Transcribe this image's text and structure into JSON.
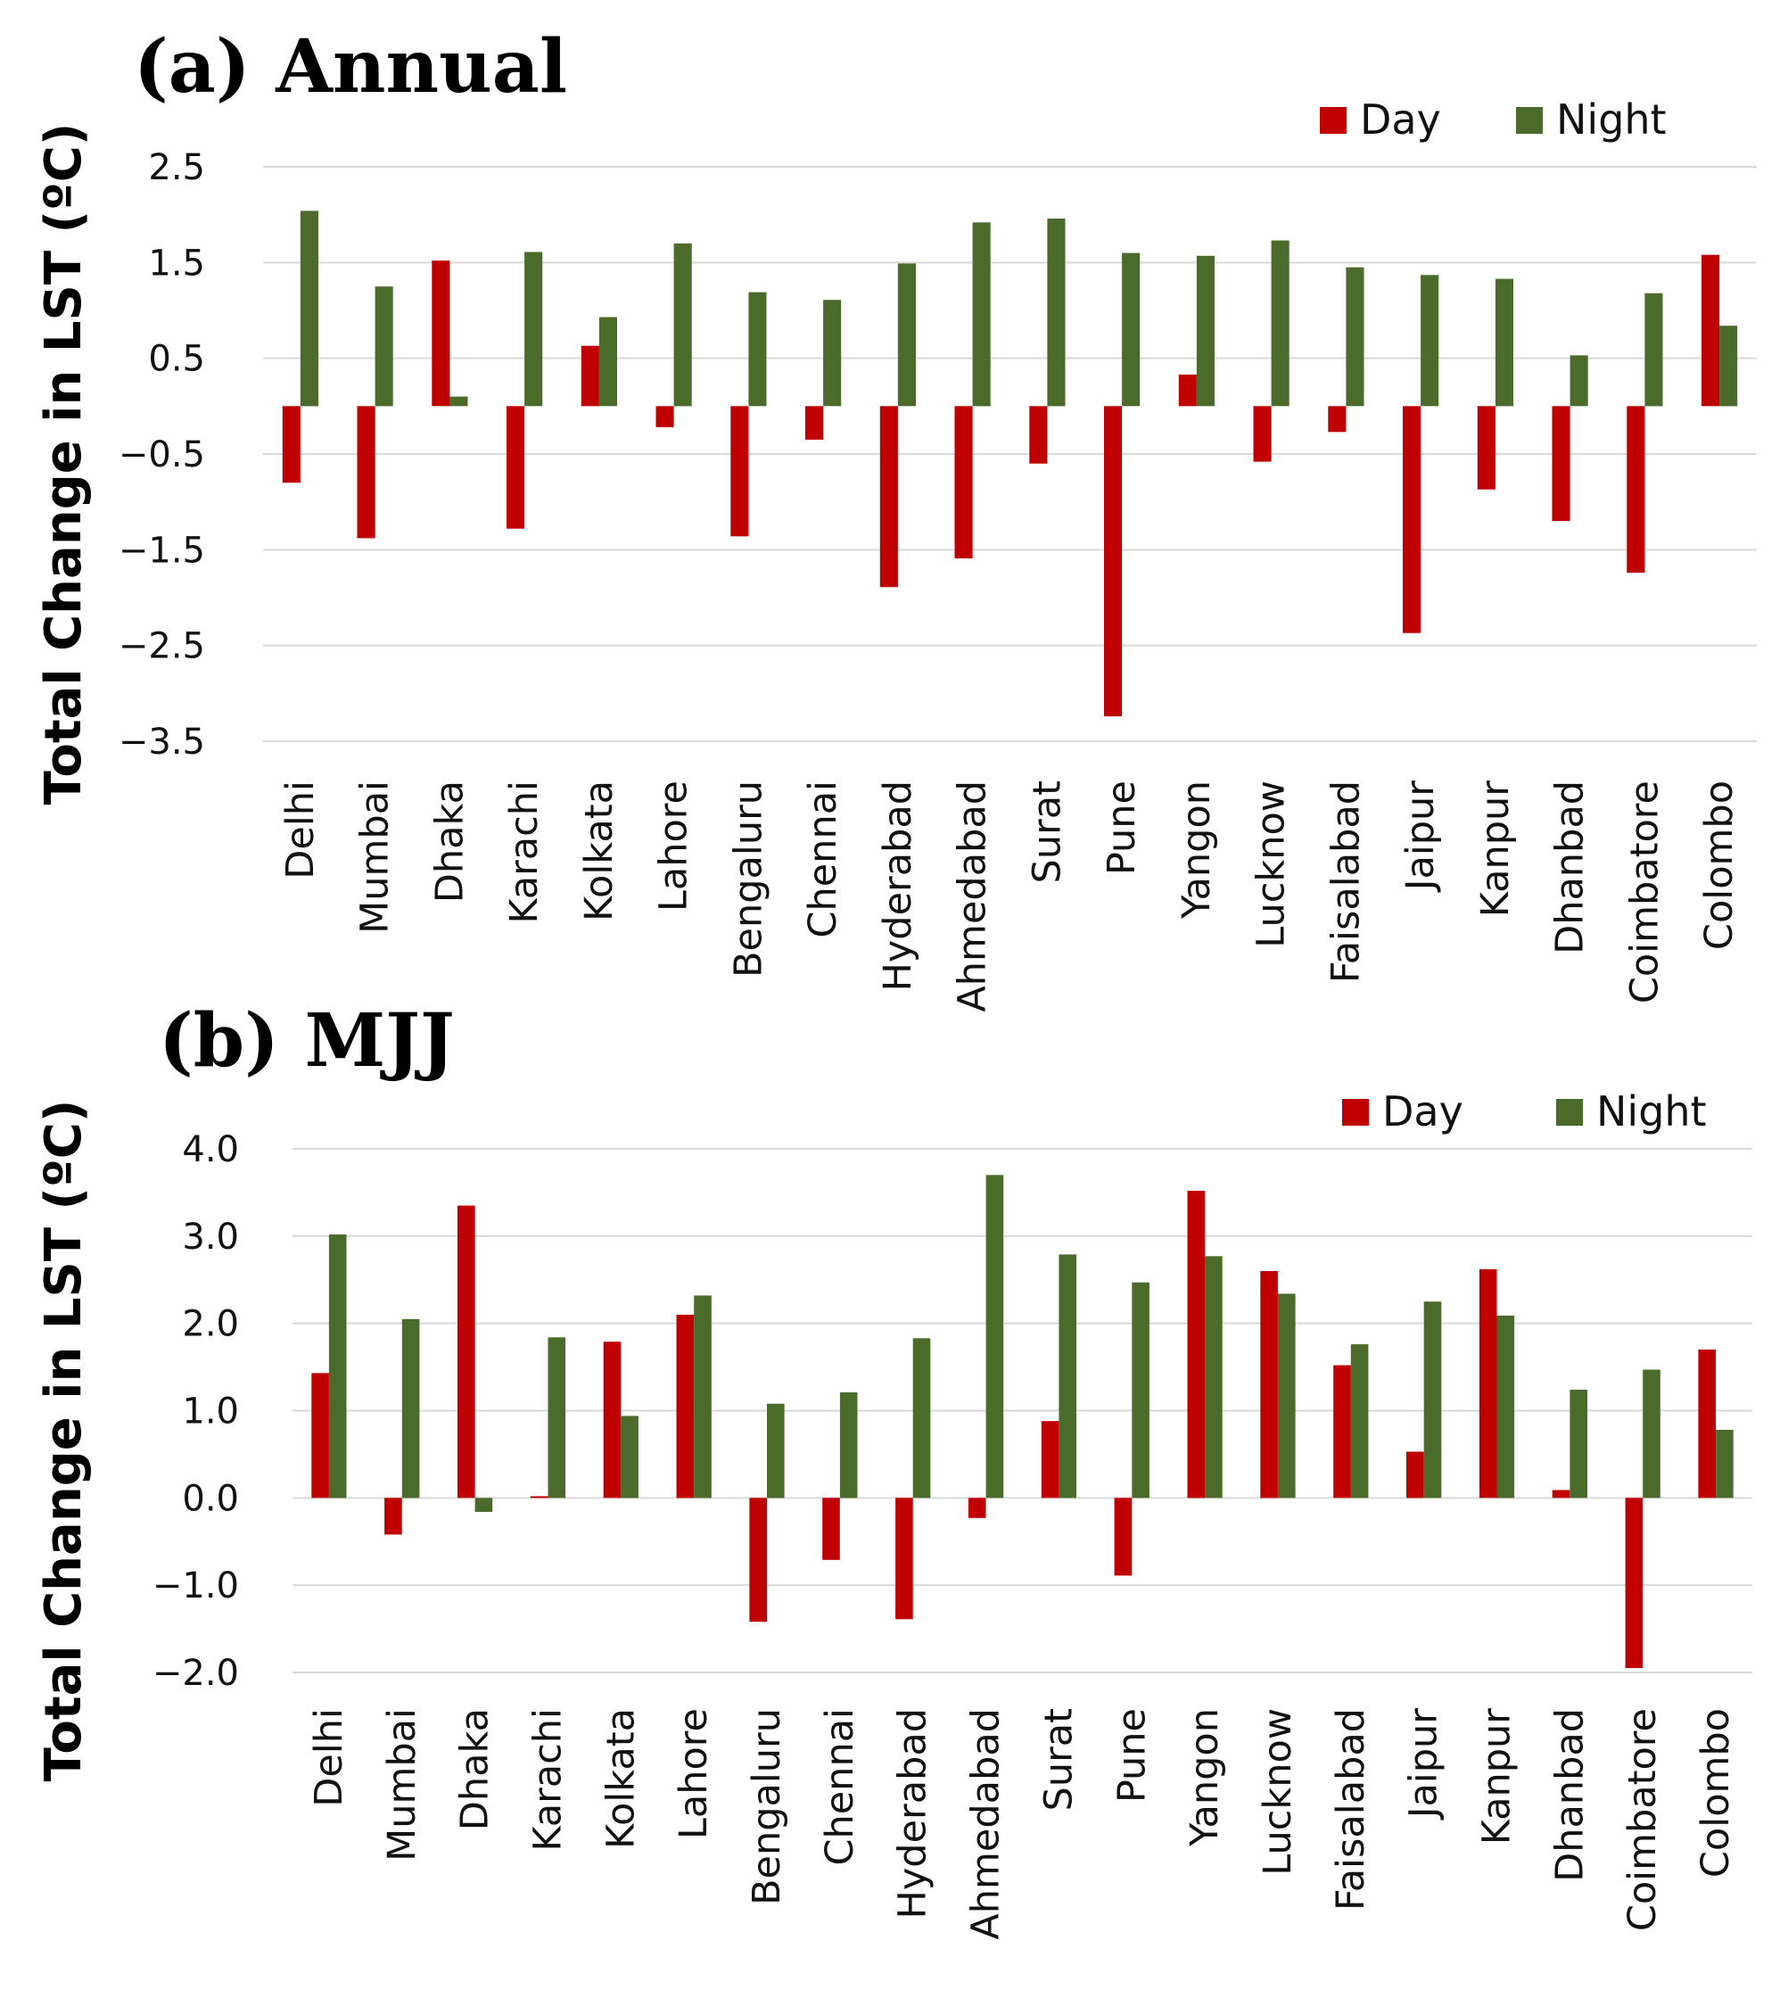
{
  "chart_data": [
    {
      "type": "bar",
      "title": "(a) Annual",
      "xlabel": "",
      "ylabel": "Total Change in LST (ºC)",
      "ylim": [
        -3.5,
        2.5
      ],
      "yticks": [
        2.5,
        1.5,
        0.5,
        -0.5,
        -1.5,
        -2.5,
        -3.5
      ],
      "ytick_labels": [
        "2.5",
        "1.5",
        "0.5",
        "−0.5",
        "−1.5",
        "−2.5",
        "−3.5"
      ],
      "grid": true,
      "legend": "top-right",
      "categories": [
        "Delhi",
        "Mumbai",
        "Dhaka",
        "Karachi",
        "Kolkata",
        "Lahore",
        "Bengaluru",
        "Chennai",
        "Hyderabad",
        "Ahmedabad",
        "Surat",
        "Pune",
        "Yangon",
        "Lucknow",
        "Faisalabad",
        "Jaipur",
        "Kanpur",
        "Dhanbad",
        "Coimbatore",
        "Colombo"
      ],
      "series": [
        {
          "name": "Day",
          "color": "#c00000",
          "values": [
            -0.8,
            -1.38,
            1.52,
            -1.28,
            0.63,
            -0.22,
            -1.36,
            -0.35,
            -1.89,
            -1.59,
            -0.6,
            -3.24,
            0.33,
            -0.58,
            -0.27,
            -2.37,
            -0.87,
            -1.2,
            -1.74,
            1.58
          ]
        },
        {
          "name": "Night",
          "color": "#4a6b2a",
          "values": [
            2.04,
            1.25,
            0.1,
            1.61,
            0.93,
            1.7,
            1.19,
            1.11,
            1.49,
            1.92,
            1.96,
            1.6,
            1.57,
            1.73,
            1.45,
            1.37,
            1.33,
            0.53,
            1.18,
            0.84
          ]
        }
      ]
    },
    {
      "type": "bar",
      "title": "(b) MJJ",
      "xlabel": "",
      "ylabel": "Total Change in LST (ºC)",
      "ylim": [
        -2.0,
        4.0
      ],
      "yticks": [
        4.0,
        3.0,
        2.0,
        1.0,
        0.0,
        -1.0,
        -2.0
      ],
      "ytick_labels": [
        "4.0",
        "3.0",
        "2.0",
        "1.0",
        "0.0",
        "−1.0",
        "−2.0"
      ],
      "grid": true,
      "legend": "top-right",
      "categories": [
        "Delhi",
        "Mumbai",
        "Dhaka",
        "Karachi",
        "Kolkata",
        "Lahore",
        "Bengaluru",
        "Chennai",
        "Hyderabad",
        "Ahmedabad",
        "Surat",
        "Pune",
        "Yangon",
        "Lucknow",
        "Faisalabad",
        "Jaipur",
        "Kanpur",
        "Dhanbad",
        "Coimbatore",
        "Colombo"
      ],
      "series": [
        {
          "name": "Day",
          "color": "#c00000",
          "values": [
            1.43,
            -0.42,
            3.35,
            0.02,
            1.79,
            2.1,
            -1.42,
            -0.71,
            -1.39,
            -0.23,
            0.88,
            -0.89,
            3.52,
            2.6,
            1.52,
            0.53,
            2.62,
            0.09,
            -1.95,
            1.7
          ]
        },
        {
          "name": "Night",
          "color": "#4a6b2a",
          "values": [
            3.02,
            2.05,
            -0.16,
            1.84,
            0.94,
            2.32,
            1.08,
            1.21,
            1.83,
            3.7,
            2.79,
            2.47,
            2.77,
            2.34,
            1.76,
            2.25,
            2.09,
            1.24,
            1.47,
            0.78
          ]
        }
      ]
    }
  ]
}
